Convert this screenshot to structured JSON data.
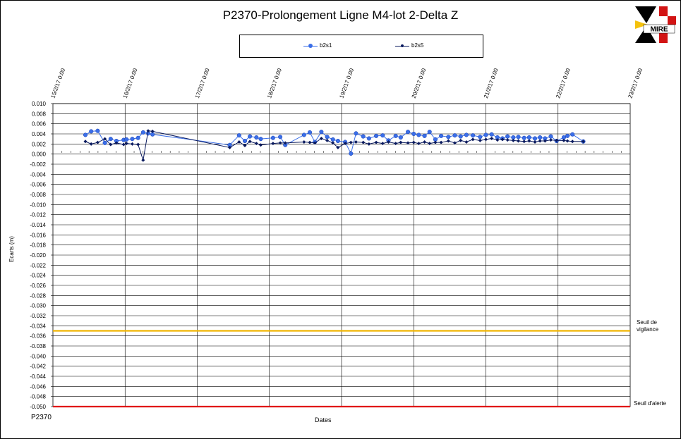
{
  "title": "P2370-Prolongement Ligne M4-lot 2-Delta Z",
  "footer_code": "P2370",
  "logo_text": "MIRE",
  "logo_colors": {
    "red": "#d21414",
    "yellow": "#f4c20d",
    "black": "#000000"
  },
  "colors": {
    "series1": "#3a6ee8",
    "series2": "#0a1a5e",
    "vigilance": "#f0b400",
    "alerte": "#e00000"
  },
  "chart_data": {
    "type": "line",
    "title": "P2370-Prolongement Ligne M4-lot 2-Delta Z",
    "xlabel": "Dates",
    "ylabel": "Ecarts (m)",
    "ylim": [
      -0.05,
      0.01
    ],
    "y_ticks": [
      "0.010",
      "0.008",
      "0.006",
      "0.004",
      "0.002",
      "0.000",
      "-0.002",
      "-0.004",
      "-0.006",
      "-0.008",
      "-0.010",
      "-0.012",
      "-0.014",
      "-0.016",
      "-0.018",
      "-0.020",
      "-0.022",
      "-0.024",
      "-0.026",
      "-0.028",
      "-0.030",
      "-0.032",
      "-0.034",
      "-0.036",
      "-0.038",
      "-0.040",
      "-0.042",
      "-0.044",
      "-0.046",
      "-0.048",
      "-0.050"
    ],
    "x_ticks": [
      "15/2/17 0:00",
      "16/2/17 0:00",
      "17/2/17 0:00",
      "18/2/17 0:00",
      "19/2/17 0:00",
      "20/2/17 0:00",
      "21/2/17 0:00",
      "22/2/17 0:00",
      "23/2/17 0:00"
    ],
    "grid": true,
    "legend": "top",
    "series": [
      {
        "name": "b2s1",
        "x": [
          15.45,
          15.53,
          15.62,
          15.72,
          15.8,
          15.88,
          15.98,
          16.02,
          16.1,
          16.18,
          16.25,
          16.32,
          16.38,
          17.45,
          17.58,
          17.66,
          17.73,
          17.82,
          17.88,
          18.05,
          18.15,
          18.22,
          18.48,
          18.56,
          18.63,
          18.72,
          18.8,
          18.88,
          18.95,
          19.05,
          19.13,
          19.2,
          19.3,
          19.38,
          19.48,
          19.57,
          19.65,
          19.75,
          19.82,
          19.92,
          20.0,
          20.07,
          20.15,
          20.22,
          20.3,
          20.38,
          20.48,
          20.57,
          20.65,
          20.73,
          20.82,
          20.92,
          21.0,
          21.08,
          21.16,
          21.23,
          21.3,
          21.38,
          21.45,
          21.53,
          21.6,
          21.68,
          21.75,
          21.82,
          21.9,
          21.98,
          22.08,
          22.13,
          22.2,
          22.35
        ],
        "values": [
          0.0038,
          0.0045,
          0.0046,
          0.0022,
          0.003,
          0.0026,
          0.0028,
          0.0029,
          0.003,
          0.0032,
          0.0043,
          0.0041,
          0.0039,
          0.0018,
          0.0037,
          0.0026,
          0.0035,
          0.0033,
          0.003,
          0.0032,
          0.0034,
          0.0018,
          0.0038,
          0.0043,
          0.0024,
          0.0044,
          0.0034,
          0.0029,
          0.0026,
          0.0024,
          0.0001,
          0.0041,
          0.0035,
          0.0031,
          0.0036,
          0.0037,
          0.0027,
          0.0036,
          0.0033,
          0.0044,
          0.004,
          0.0038,
          0.0036,
          0.0044,
          0.0029,
          0.0036,
          0.0034,
          0.0037,
          0.0035,
          0.0038,
          0.0037,
          0.0034,
          0.0038,
          0.0039,
          0.0033,
          0.0031,
          0.0035,
          0.0033,
          0.0034,
          0.0032,
          0.0033,
          0.0031,
          0.0033,
          0.0031,
          0.0035,
          0.0026,
          0.0033,
          0.0036,
          0.0039,
          0.0025
        ],
        "color": "#3a6ee8"
      },
      {
        "name": "b2s5",
        "x": [
          15.45,
          15.53,
          15.62,
          15.72,
          15.8,
          15.88,
          15.98,
          16.02,
          16.1,
          16.18,
          16.25,
          16.32,
          16.38,
          17.45,
          17.58,
          17.66,
          17.73,
          17.82,
          17.88,
          18.05,
          18.15,
          18.22,
          18.48,
          18.56,
          18.63,
          18.72,
          18.8,
          18.88,
          18.95,
          19.05,
          19.13,
          19.2,
          19.3,
          19.38,
          19.48,
          19.57,
          19.65,
          19.75,
          19.82,
          19.92,
          20.0,
          20.07,
          20.15,
          20.22,
          20.3,
          20.38,
          20.48,
          20.57,
          20.65,
          20.73,
          20.82,
          20.92,
          21.0,
          21.08,
          21.16,
          21.23,
          21.3,
          21.38,
          21.45,
          21.53,
          21.6,
          21.68,
          21.75,
          21.82,
          21.9,
          21.98,
          22.08,
          22.13,
          22.2,
          22.35
        ],
        "values": [
          0.0025,
          0.002,
          0.0023,
          0.003,
          0.0019,
          0.0022,
          0.0019,
          0.0021,
          0.002,
          0.0019,
          -0.0012,
          0.0046,
          0.0045,
          0.0013,
          0.0024,
          0.0017,
          0.0025,
          0.0021,
          0.0018,
          0.0021,
          0.0022,
          0.0022,
          0.0024,
          0.0023,
          0.0022,
          0.0031,
          0.0027,
          0.0022,
          0.0013,
          0.0021,
          0.0023,
          0.0024,
          0.0023,
          0.002,
          0.0023,
          0.0021,
          0.0024,
          0.0021,
          0.0023,
          0.0022,
          0.0023,
          0.0021,
          0.0024,
          0.0021,
          0.0023,
          0.0023,
          0.0026,
          0.0022,
          0.0027,
          0.0024,
          0.0029,
          0.0027,
          0.0029,
          0.0031,
          0.0028,
          0.0029,
          0.0028,
          0.0027,
          0.0026,
          0.0025,
          0.0026,
          0.0024,
          0.0026,
          0.0026,
          0.0028,
          0.0027,
          0.0027,
          0.0026,
          0.0025,
          0.0025
        ],
        "color": "#0a1a5e"
      }
    ],
    "thresholds": [
      {
        "label_line1": "Seuil de",
        "label_line2": "vigilance",
        "value": -0.035,
        "color": "#f0b400"
      },
      {
        "label_line1": "Seuil d'alerte",
        "label_line2": "",
        "value": -0.05,
        "color": "#e00000"
      }
    ]
  }
}
